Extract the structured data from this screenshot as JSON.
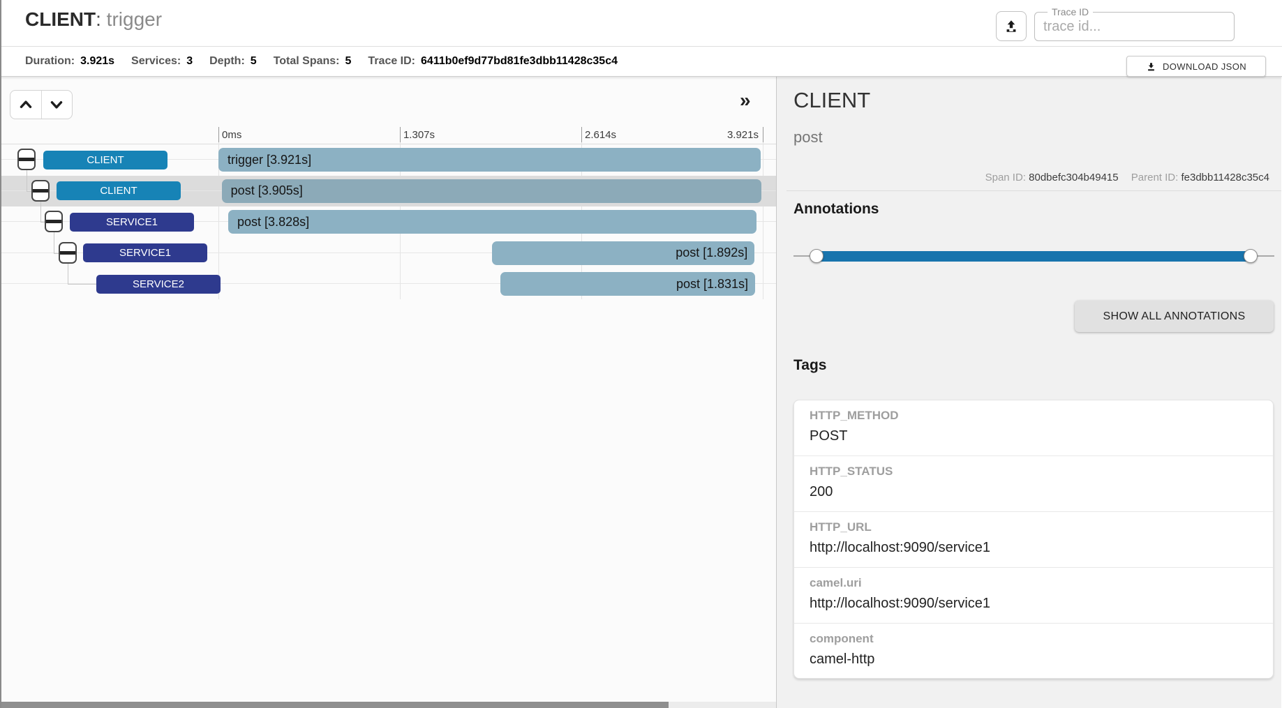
{
  "header": {
    "title_service": "CLIENT",
    "title_separator": ": ",
    "title_span": "trigger",
    "trace_field": {
      "label": "Trace ID",
      "placeholder": "trace id..."
    }
  },
  "stats": {
    "items": [
      {
        "label": "Duration:",
        "value": "3.921s"
      },
      {
        "label": "Services:",
        "value": "3"
      },
      {
        "label": "Depth:",
        "value": "5"
      },
      {
        "label": "Total Spans:",
        "value": "5"
      },
      {
        "label": "Trace ID:",
        "value": "6411b0ef9d77bd81fe3dbb11428c35c4"
      }
    ],
    "download_label": "DOWNLOAD JSON"
  },
  "timeline": {
    "collapse_glyph": "»",
    "axis_ticks": [
      {
        "label": "0ms",
        "pct": 0
      },
      {
        "label": "1.307s",
        "pct": 33.33
      },
      {
        "label": "2.614s",
        "pct": 66.67
      },
      {
        "label": "3.921s",
        "pct": 100
      }
    ],
    "rows": [
      {
        "service": "CLIENT",
        "kind": "client",
        "label": "trigger [3.921s]",
        "depth": 0,
        "start_pct": 0,
        "width_pct": 99.6,
        "align": "left",
        "selected": false,
        "expandable": true
      },
      {
        "service": "CLIENT",
        "kind": "client",
        "label": "post [3.905s]",
        "depth": 1,
        "start_pct": 0.6,
        "width_pct": 99.1,
        "align": "left",
        "selected": true,
        "expandable": true
      },
      {
        "service": "SERVICE1",
        "kind": "service",
        "label": "post [3.828s]",
        "depth": 2,
        "start_pct": 1.8,
        "width_pct": 97.1,
        "align": "left",
        "selected": false,
        "expandable": true
      },
      {
        "service": "SERVICE1",
        "kind": "service",
        "label": "post [1.892s]",
        "depth": 3,
        "start_pct": 50.3,
        "width_pct": 48.2,
        "align": "right",
        "selected": false,
        "expandable": true
      },
      {
        "service": "SERVICE2",
        "kind": "service",
        "label": "post [1.831s]",
        "depth": 4,
        "start_pct": 51.8,
        "width_pct": 46.8,
        "align": "right",
        "selected": false,
        "expandable": false
      }
    ]
  },
  "detail": {
    "service": "CLIENT",
    "span_name": "post",
    "span_id_label": "Span ID:",
    "span_id": "80dbefc304b49415",
    "parent_id_label": "Parent ID:",
    "parent_id": "fe3dbb11428c35c4",
    "annotations_title": "Annotations",
    "show_all_label": "SHOW ALL ANNOTATIONS",
    "tags_title": "Tags",
    "tags": [
      {
        "key": "HTTP_METHOD",
        "value": "POST"
      },
      {
        "key": "HTTP_STATUS",
        "value": "200"
      },
      {
        "key": "HTTP_URL",
        "value": "http://localhost:9090/service1"
      },
      {
        "key": "camel.uri",
        "value": "http://localhost:9090/service1"
      },
      {
        "key": "component",
        "value": "camel-http"
      }
    ]
  },
  "colors": {
    "client_badge": "#1783b6",
    "service_badge": "#2e3a8e",
    "bar": "#8cb1c3",
    "bar_selected": "#8caab8",
    "selected_row_bg": "#dcdcdc",
    "slider_accent": "#1874ad"
  }
}
